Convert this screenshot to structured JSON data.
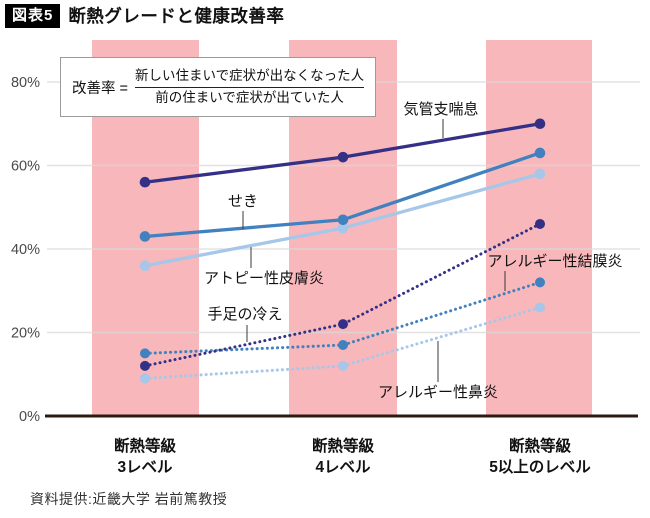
{
  "title": {
    "badge": "図表5",
    "text": "断熱グレードと健康改善率"
  },
  "formula": {
    "label": "改善率",
    "equals": "=",
    "numerator": "新しい住まいで症状が出なくなった人",
    "denominator": "前の住まいで症状が出ていた人"
  },
  "footer": {
    "credit": "資料提供:近畿大学 岩前篤教授"
  },
  "chart_data": {
    "type": "line",
    "title": "断熱グレードと健康改善率",
    "categories": [
      "断熱等級 3レベル",
      "断熱等級 4レベル",
      "断熱等級 5以上のレベル"
    ],
    "category_lines": [
      [
        "断熱等級",
        "3レベル"
      ],
      [
        "断熱等級",
        "4レベル"
      ],
      [
        "断熱等級",
        "5以上のレベル"
      ]
    ],
    "ylabel": "改善率",
    "ylim": [
      0,
      80
    ],
    "yticks": [
      0,
      20,
      40,
      60,
      80
    ],
    "ytick_suffix": "%",
    "grid": true,
    "legend_position": "inline-annotations",
    "series": [
      {
        "name": "気管支喘息",
        "values": [
          56,
          62,
          70
        ],
        "color": "#343086",
        "line_style": "solid"
      },
      {
        "name": "せき",
        "values": [
          43,
          47,
          63
        ],
        "color": "#4181bf",
        "line_style": "solid"
      },
      {
        "name": "アトピー性皮膚炎",
        "values": [
          36,
          45,
          58
        ],
        "color": "#a6c7e9",
        "line_style": "solid"
      },
      {
        "name": "手足の冷え",
        "values": [
          12,
          22,
          46
        ],
        "color": "#343086",
        "line_style": "dotted"
      },
      {
        "name": "アレルギー性結膜炎",
        "values": [
          15,
          17,
          32
        ],
        "color": "#4181bf",
        "line_style": "dotted"
      },
      {
        "name": "アレルギー性鼻炎",
        "values": [
          9,
          12,
          26
        ],
        "color": "#a6c7e9",
        "line_style": "dotted"
      }
    ],
    "colors": {
      "band": "#f8b7ba",
      "axis": "#2d1b12",
      "tick_label": "#4a4a4a",
      "category_label": "#111111",
      "annotation_label": "#111111",
      "leader_line": "#3a3a3a"
    }
  }
}
